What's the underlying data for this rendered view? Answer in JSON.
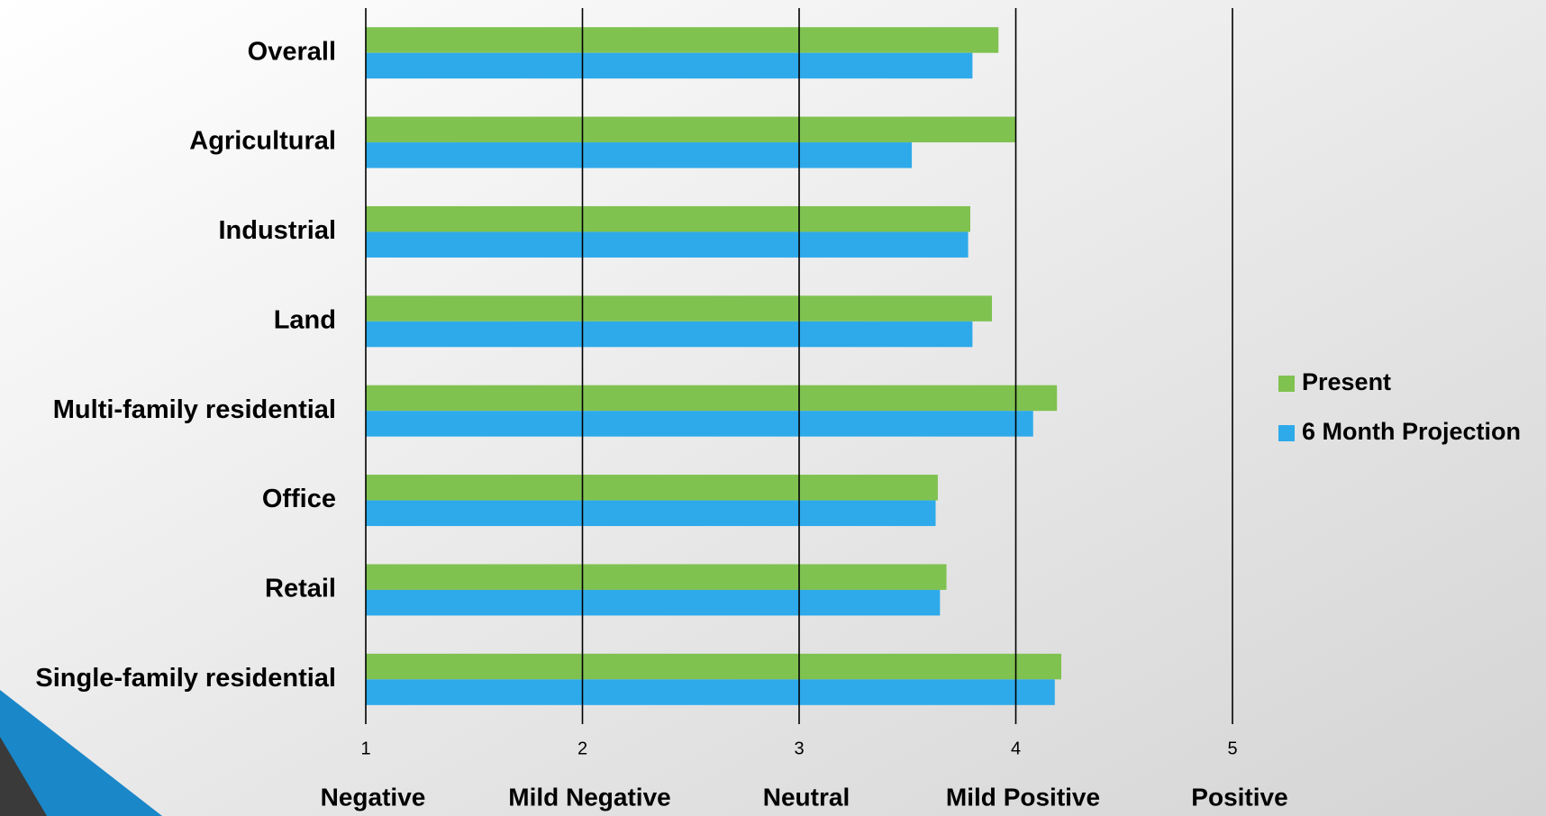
{
  "chart_data": {
    "type": "bar",
    "orientation": "horizontal",
    "categories": [
      "Overall",
      "Agricultural",
      "Industrial",
      "Land",
      "Multi-family residential",
      "Office",
      "Retail",
      "Single-family residential"
    ],
    "series": [
      {
        "name": "Present",
        "color": "#7fc250",
        "values": [
          3.92,
          4.0,
          3.79,
          3.89,
          4.19,
          3.64,
          3.68,
          4.21
        ]
      },
      {
        "name": "6 Month Projection",
        "color": "#2eaaea",
        "values": [
          3.8,
          3.52,
          3.78,
          3.8,
          4.08,
          3.63,
          3.65,
          4.18
        ]
      }
    ],
    "xlim": [
      1,
      5
    ],
    "xticks": [
      1,
      2,
      3,
      4,
      5
    ],
    "grid": true,
    "legend": "right",
    "scale_labels": [
      "Negative",
      "Mild Negative",
      "Neutral",
      "Mild Positive",
      "Positive"
    ]
  }
}
